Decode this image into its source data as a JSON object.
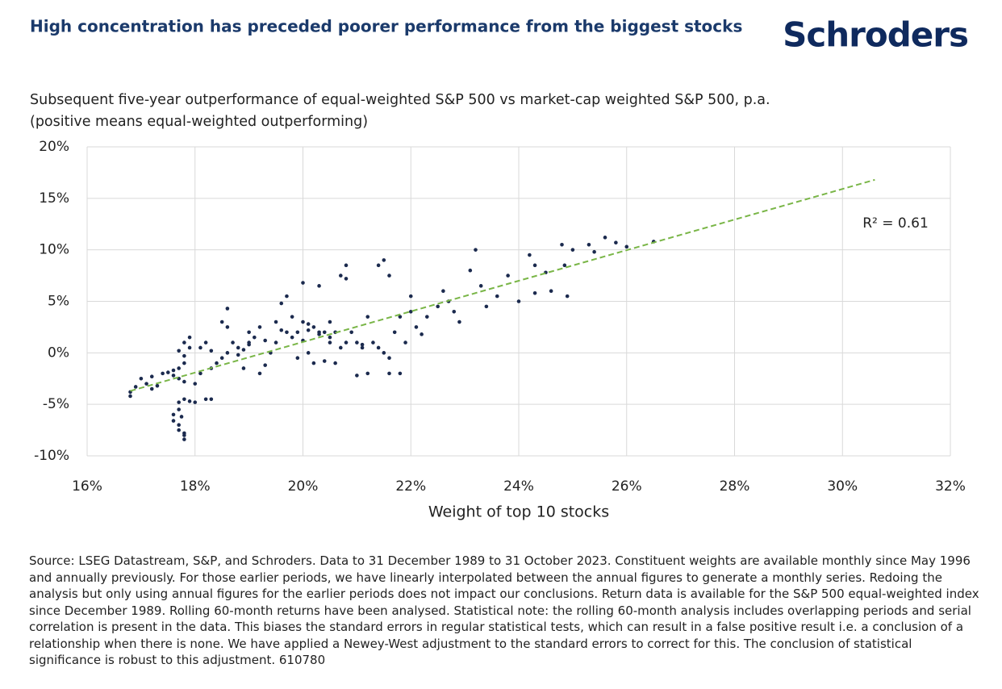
{
  "brand": "Schroders",
  "chart_data": {
    "type": "scatter",
    "title": "High concentration has preceded poorer performance from the biggest stocks",
    "subtitle": [
      "Subsequent five-year outperformance of equal-weighted S&P 500 vs market-cap weighted S&P 500, p.a.",
      "(positive means equal-weighted outperforming)"
    ],
    "x_label": "Weight of top 10 stocks",
    "xlim": [
      16,
      32
    ],
    "xticks": [
      {
        "value": 16,
        "label": "16%"
      },
      {
        "value": 18,
        "label": "18%"
      },
      {
        "value": 20,
        "label": "20%"
      },
      {
        "value": 22,
        "label": "22%"
      },
      {
        "value": 24,
        "label": "24%"
      },
      {
        "value": 26,
        "label": "26%"
      },
      {
        "value": 28,
        "label": "28%"
      },
      {
        "value": 30,
        "label": "30%"
      },
      {
        "value": 32,
        "label": "32%"
      }
    ],
    "ylim": [
      -10,
      20
    ],
    "yticks": [
      {
        "value": -10,
        "label": "-10%"
      },
      {
        "value": -5,
        "label": "-5%"
      },
      {
        "value": 0,
        "label": "0%"
      },
      {
        "value": 5,
        "label": "5%"
      },
      {
        "value": 10,
        "label": "10%"
      },
      {
        "value": 15,
        "label": "15%"
      },
      {
        "value": 20,
        "label": "20%"
      }
    ],
    "grid": true,
    "series": [
      {
        "color": "#1b2a4e",
        "x": [
          16.8,
          16.8,
          16.9,
          17.0,
          17.1,
          17.2,
          17.3,
          17.2,
          17.4,
          17.5,
          17.6,
          17.6,
          17.7,
          17.7,
          17.8,
          17.8,
          17.9,
          17.9,
          17.8,
          17.7,
          17.8,
          17.8,
          17.7,
          17.6,
          17.6,
          17.7,
          17.7,
          17.8,
          17.8,
          17.75,
          17.7,
          17.8,
          17.9,
          18.0,
          18.0,
          18.1,
          18.2,
          18.3,
          18.1,
          18.2,
          18.3,
          18.3,
          18.4,
          18.5,
          18.5,
          18.6,
          18.6,
          18.7,
          18.8,
          18.9,
          18.9,
          19.0,
          19.0,
          19.1,
          19.2,
          19.2,
          19.3,
          19.4,
          19.5,
          19.5,
          19.6,
          19.7,
          19.7,
          19.8,
          19.9,
          19.9,
          20.0,
          20.0,
          20.0,
          20.1,
          20.1,
          20.2,
          20.2,
          20.3,
          20.3,
          20.4,
          20.4,
          20.5,
          20.5,
          20.6,
          20.6,
          20.7,
          20.7,
          20.8,
          20.8,
          20.9,
          21.0,
          21.0,
          21.1,
          21.2,
          21.2,
          21.3,
          21.4,
          21.5,
          21.5,
          21.6,
          21.6,
          21.6,
          21.7,
          21.8,
          21.8,
          21.9,
          22.0,
          22.0,
          22.1,
          22.2,
          22.3,
          22.5,
          22.6,
          22.7,
          22.8,
          22.9,
          23.1,
          23.2,
          23.3,
          23.4,
          23.6,
          23.8,
          24.0,
          24.2,
          24.3,
          24.3,
          24.5,
          24.6,
          24.8,
          24.9,
          24.85,
          25.0,
          25.3,
          25.4,
          25.6,
          25.8,
          26.0,
          26.5,
          18.6,
          18.8,
          19.0,
          19.3,
          19.6,
          19.8,
          20.1,
          20.3,
          20.5,
          20.8,
          21.1,
          21.4
        ],
        "y": [
          -4.2,
          -3.8,
          -3.3,
          -2.5,
          -3.0,
          -3.5,
          -3.2,
          -2.3,
          -2.0,
          -1.9,
          -1.7,
          -2.2,
          -2.5,
          -1.5,
          -1.0,
          -0.3,
          0.5,
          1.5,
          1.0,
          0.2,
          -2.8,
          -4.5,
          -4.8,
          -6.0,
          -6.6,
          -7.0,
          -7.5,
          -8.0,
          -8.4,
          -6.2,
          -5.5,
          -7.8,
          -4.7,
          -4.8,
          -3.0,
          -2.0,
          -4.5,
          -4.5,
          0.5,
          1.0,
          0.2,
          -1.5,
          -1.0,
          -0.5,
          3.0,
          4.3,
          2.5,
          1.0,
          -0.2,
          0.3,
          -1.5,
          2.0,
          0.8,
          1.5,
          2.5,
          -2.0,
          -1.2,
          0.0,
          1.0,
          3.0,
          4.8,
          2.0,
          5.5,
          3.5,
          2.0,
          -0.5,
          6.8,
          3.0,
          1.2,
          2.2,
          0.0,
          -1.0,
          2.5,
          1.8,
          6.5,
          2.0,
          -0.8,
          3.0,
          1.0,
          2.0,
          -1.0,
          7.5,
          0.5,
          8.5,
          7.2,
          2.0,
          1.0,
          -2.2,
          0.5,
          3.5,
          -2.0,
          1.0,
          8.5,
          9.0,
          0.0,
          7.5,
          -0.5,
          -2.0,
          2.0,
          3.5,
          -2.0,
          1.0,
          5.5,
          4.0,
          2.5,
          1.8,
          3.5,
          4.5,
          6.0,
          5.0,
          4.0,
          3.0,
          8.0,
          10.0,
          6.5,
          4.5,
          5.5,
          7.5,
          5.0,
          9.5,
          5.8,
          8.5,
          7.8,
          6.0,
          10.5,
          5.5,
          8.5,
          10.0,
          10.5,
          9.8,
          11.2,
          10.7,
          10.3,
          10.8,
          0.0,
          0.5,
          1.0,
          1.2,
          2.2,
          1.5,
          2.8,
          2.0,
          1.5,
          1.0,
          0.8,
          0.5
        ]
      }
    ],
    "trendline": {
      "x": [
        16.8,
        30.6
      ],
      "y": [
        -3.7,
        16.8
      ],
      "color": "#7ab648"
    },
    "annotation": "R² = 0.61"
  },
  "source": "Source: LSEG Datastream, S&P, and Schroders. Data to 31 December 1989 to 31 October 2023. Constituent weights are available monthly since May 1996 and annually previously. For those earlier periods, we have linearly interpolated between the annual figures to generate a monthly series. Redoing the analysis but only using annual figures for the earlier periods does not impact our conclusions. Return data is available for the S&P 500 equal-weighted index since December 1989. Rolling 60-month returns have been analysed. Statistical note: the rolling 60-month analysis includes overlapping periods and serial correlation is present in the data. This biases the standard errors in regular statistical tests, which can result in a false positive result i.e. a conclusion of a relationship when there is none. We have applied a Newey-West adjustment to the standard errors to correct for this. The conclusion of statistical significance is robust to this adjustment. 610780"
}
